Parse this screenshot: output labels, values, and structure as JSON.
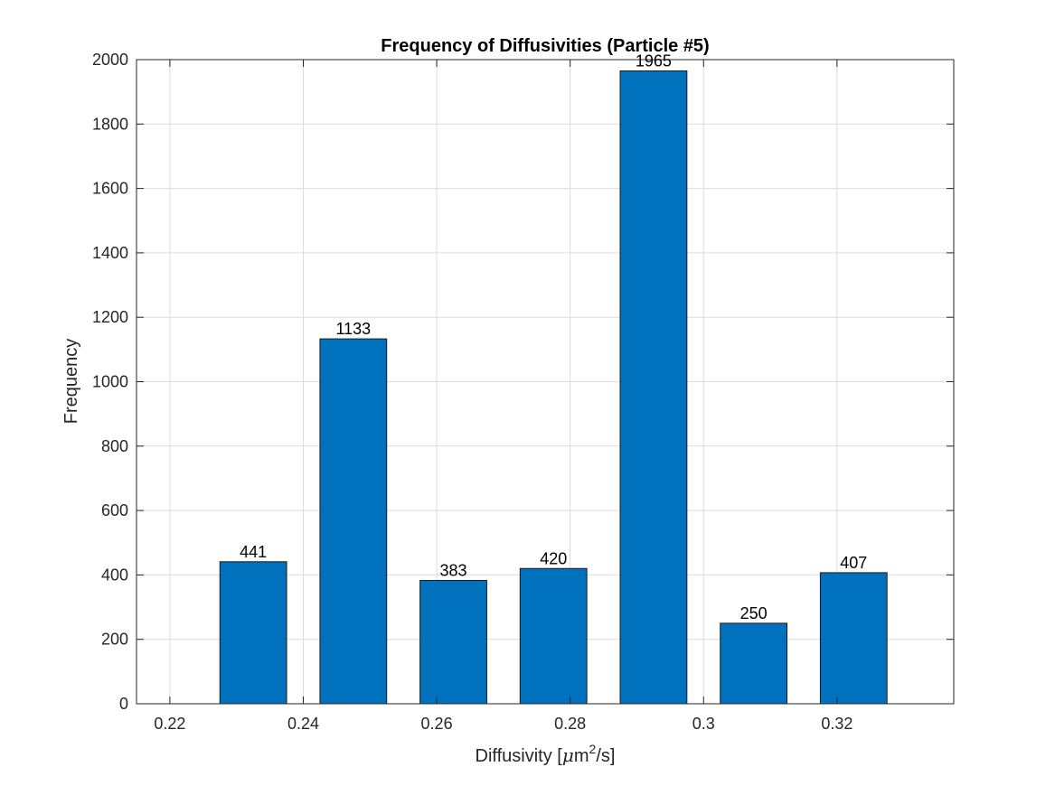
{
  "chart_data": {
    "type": "bar",
    "title": "Frequency of Diffusivities (Particle #5)",
    "xlabel": "Diffusivity [μm²/s]",
    "xlabel_parts": {
      "before": "Diffusivity [",
      "mu": "μ",
      "m": "m",
      "sup": "2",
      "after": "/s]"
    },
    "ylabel": "Frequency",
    "xlim": [
      0.215,
      0.3375
    ],
    "ylim": [
      0,
      2000
    ],
    "xticks": [
      0.22,
      0.24,
      0.26,
      0.28,
      0.3,
      0.32
    ],
    "xtick_labels": [
      "0.22",
      "0.24",
      "0.26",
      "0.28",
      "0.3",
      "0.32"
    ],
    "yticks": [
      0,
      200,
      400,
      600,
      800,
      1000,
      1200,
      1400,
      1600,
      1800,
      2000
    ],
    "ytick_labels": [
      "0",
      "200",
      "400",
      "600",
      "800",
      "1000",
      "1200",
      "1400",
      "1600",
      "1800",
      "2000"
    ],
    "bar_width": 0.01,
    "x": [
      0.2325,
      0.2475,
      0.2625,
      0.2775,
      0.2925,
      0.3075,
      0.3225
    ],
    "values": [
      441,
      1133,
      383,
      420,
      1965,
      250,
      407
    ],
    "data_labels": [
      "441",
      "1133",
      "383",
      "420",
      "1965",
      "250",
      "407"
    ],
    "bar_color": "#0072BD",
    "grid": true
  }
}
